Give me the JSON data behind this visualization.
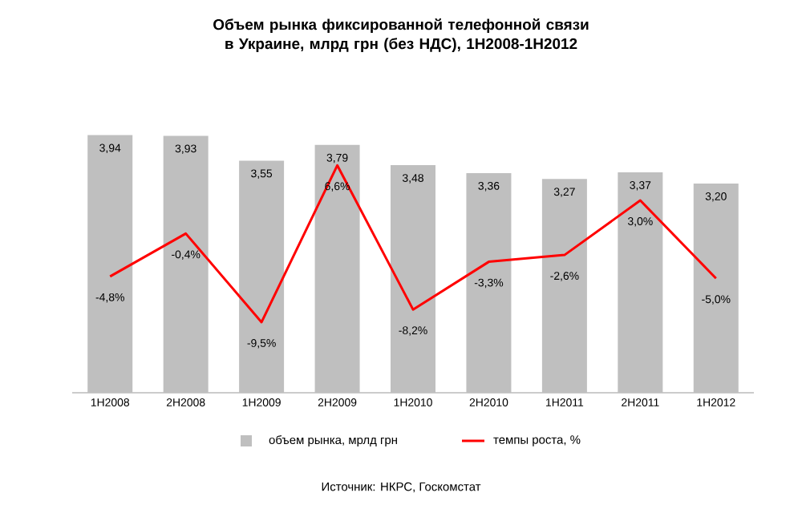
{
  "chart_data": {
    "type": "bar",
    "title": "Объем рынка фиксированной телефонной связи в Украине, млрд грн (без НДС), 1H2008-1H2012",
    "categories": [
      "1H2008",
      "2H2008",
      "1H2009",
      "2H2009",
      "1H2010",
      "2H2010",
      "1H2011",
      "2H2011",
      "1H2012"
    ],
    "series": [
      {
        "name": "объем рынка, мрлд грн",
        "color": "#bfbfbf",
        "values": [
          3.94,
          3.93,
          3.55,
          3.79,
          3.48,
          3.36,
          3.27,
          3.37,
          3.2
        ],
        "value_labels": [
          "3,94",
          "3,93",
          "3,55",
          "3,79",
          "3,48",
          "3,36",
          "3,27",
          "3,37",
          "3,20"
        ]
      },
      {
        "name": "темпы роста, %",
        "type": "line",
        "axis": "y2",
        "color": "#ff0000",
        "values": [
          -4.8,
          -0.4,
          -9.5,
          6.6,
          -8.2,
          -3.3,
          -2.6,
          3.0,
          -5.0
        ],
        "value_labels": [
          "-4,8%",
          "-0,4%",
          "-9,5%",
          "6,6%",
          "-8,2%",
          "-3,3%",
          "-2,6%",
          "3,0%",
          "-5,0%"
        ]
      }
    ],
    "tick_labels": "x",
    "legend": "bottom",
    "annotations": [
      "Источник: НКРС, Госкомстат"
    ]
  }
}
